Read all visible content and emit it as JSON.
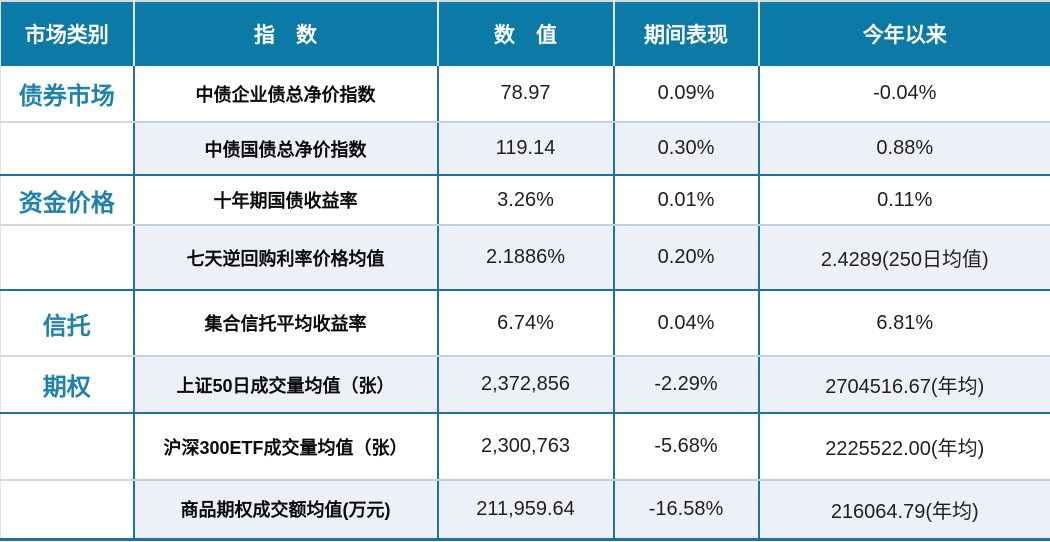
{
  "chart_data": {
    "type": "table",
    "columns": [
      "市场类别",
      "指　数",
      "数　值",
      "期间表现",
      "今年以来"
    ],
    "rows": [
      {
        "category": "债券市场",
        "index": "中债企业债总净价指数",
        "value": "78.97",
        "period": "0.09%",
        "ytd": "-0.04%"
      },
      {
        "category": "",
        "index": "中债国债总净价指数",
        "value": "119.14",
        "period": "0.30%",
        "ytd": "0.88%"
      },
      {
        "category": "资金价格",
        "index": "十年期国债收益率",
        "value": "3.26%",
        "period": "0.01%",
        "ytd": "0.11%"
      },
      {
        "category": "",
        "index": "七天逆回购利率价格均值",
        "value": "2.1886%",
        "period": "0.20%",
        "ytd": "2.4289(250日均值)"
      },
      {
        "category": "信托",
        "index": "集合信托平均收益率",
        "value": "6.74%",
        "period": "0.04%",
        "ytd": "6.81%"
      },
      {
        "category": "期权",
        "index": "上证50日成交量均值（张）",
        "value": "2,372,856",
        "period": "-2.29%",
        "ytd": "2704516.67(年均)"
      },
      {
        "category": "",
        "index": "沪深300ETF成交量均值（张）",
        "value": "2,300,763",
        "period": "-5.68%",
        "ytd": "2225522.00(年均)"
      },
      {
        "category": "",
        "index": "商品期权成交额均值(万元)",
        "value": "211,959.64",
        "period": "-16.58%",
        "ytd": "216064.79(年均)"
      }
    ]
  },
  "colors": {
    "header_bg": "#0b7aa7",
    "category_text": "#1f81ae",
    "stripe_bg": "#edf1f7",
    "border_teal": "#1d72a3",
    "border_light": "#bdd2e6"
  }
}
